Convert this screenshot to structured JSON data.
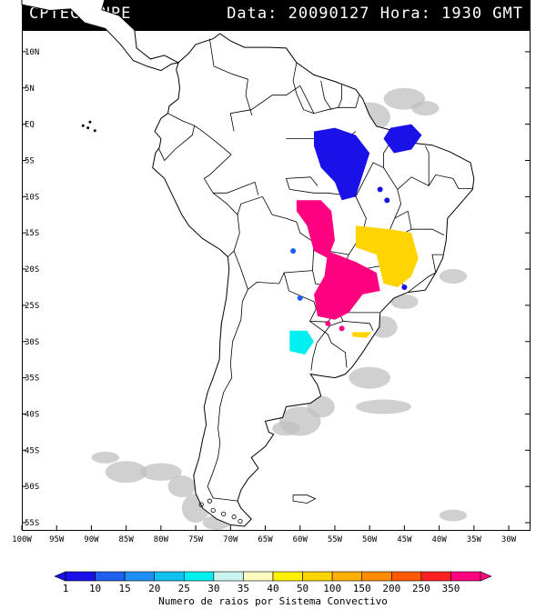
{
  "header": {
    "org": "CPTEC/INPE",
    "timestamp": "Data: 20090127 Hora: 1930 GMT"
  },
  "map": {
    "lon_range": [
      -100,
      -27
    ],
    "lat_range": [
      -56,
      13
    ],
    "lat_labels": [
      "10N",
      "5N",
      "EQ",
      "5S",
      "10S",
      "15S",
      "20S",
      "25S",
      "30S",
      "35S",
      "40S",
      "45S",
      "50S",
      "55S"
    ],
    "lat_values": [
      10,
      5,
      0,
      -5,
      -10,
      -15,
      -20,
      -25,
      -30,
      -35,
      -40,
      -45,
      -50,
      -55
    ],
    "lon_labels": [
      "100W",
      "95W",
      "90W",
      "85W",
      "80W",
      "75W",
      "70W",
      "65W",
      "60W",
      "55W",
      "50W",
      "45W",
      "40W",
      "35W",
      "30W"
    ],
    "lon_values": [
      -100,
      -95,
      -90,
      -85,
      -80,
      -75,
      -70,
      -65,
      -60,
      -55,
      -50,
      -45,
      -40,
      -35,
      -30
    ],
    "land_color": "#ffffff",
    "border_color": "#000000",
    "cloud_color": "#c0c0c0"
  },
  "colorbar": {
    "levels": [
      "1",
      "10",
      "15",
      "20",
      "25",
      "30",
      "35",
      "40",
      "50",
      "100",
      "150",
      "200",
      "250",
      "350"
    ],
    "colors": [
      "#1a10e8",
      "#1f5ff0",
      "#1e90f5",
      "#10c0f0",
      "#00f0f0",
      "#c8f5f0",
      "#fffac0",
      "#fff000",
      "#ffd400",
      "#ffb000",
      "#ff8c00",
      "#ff5a00",
      "#ff2020",
      "#ff0080"
    ],
    "title": "Numero de raios por Sistema Convectivo"
  },
  "systems": [
    {
      "name": "amazon-north-cluster",
      "level": "1",
      "color": "#1a10e8"
    },
    {
      "name": "northeast-coast-cluster",
      "level": "1",
      "color": "#1a10e8"
    },
    {
      "name": "mato-grosso-cluster",
      "level": "350",
      "color": "#ff0080"
    },
    {
      "name": "minas-cluster",
      "level": "50",
      "color": "#ffd400"
    },
    {
      "name": "parana-cluster",
      "level": "350",
      "color": "#ff0080"
    },
    {
      "name": "argentina-cluster",
      "level": "25",
      "color": "#00f0f0"
    },
    {
      "name": "rio-grande-cluster",
      "level": "50",
      "color": "#ffd400"
    }
  ]
}
